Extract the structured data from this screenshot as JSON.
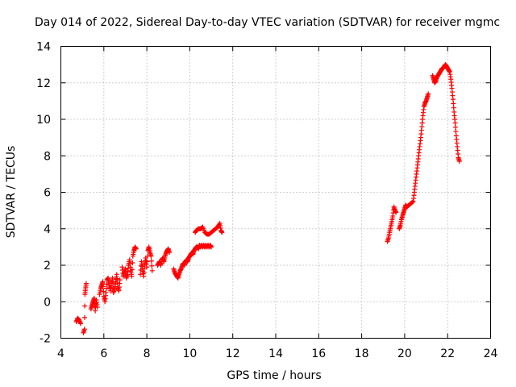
{
  "chart_data": {
    "type": "scatter",
    "title": "Day 014 of 2022, Sidereal Day-to-day VTEC variation (SDTVAR) for receiver mgmc",
    "xlabel": "GPS time / hours",
    "ylabel": "SDTVAR / TECUs",
    "xlim": [
      4,
      24
    ],
    "ylim": [
      -2,
      14
    ],
    "x_ticks": [
      "4",
      "6",
      "8",
      "10",
      "12",
      "14",
      "16",
      "18",
      "20",
      "22",
      "24"
    ],
    "y_ticks": [
      "-2",
      "0",
      "2",
      "4",
      "6",
      "8",
      "10",
      "12",
      "14"
    ],
    "grid": true,
    "marker": "+",
    "color": "#ff0000",
    "series": [
      {
        "name": "SDTVAR",
        "segments": [
          [
            [
              4.72,
              -1.1
            ],
            [
              4.78,
              -0.9
            ],
            [
              4.85,
              -1.0
            ],
            [
              4.92,
              -1.2
            ]
          ],
          [
            [
              5.05,
              -1.7
            ],
            [
              5.1,
              -1.5
            ],
            [
              5.12,
              0.4
            ],
            [
              5.15,
              0.7
            ],
            [
              5.18,
              1.0
            ]
          ],
          [
            [
              5.4,
              -0.4
            ],
            [
              5.45,
              -0.2
            ],
            [
              5.5,
              0.0
            ],
            [
              5.55,
              0.2
            ],
            [
              5.6,
              -0.5
            ],
            [
              5.65,
              0.1
            ],
            [
              5.7,
              -0.3
            ]
          ],
          [
            [
              5.8,
              0.4
            ],
            [
              5.85,
              0.7
            ],
            [
              5.9,
              0.9
            ],
            [
              5.95,
              1.1
            ],
            [
              6.0,
              0.3
            ],
            [
              6.05,
              0.0
            ],
            [
              6.1,
              0.5
            ],
            [
              6.15,
              1.2
            ],
            [
              6.2,
              1.3
            ],
            [
              6.25,
              0.9
            ],
            [
              6.3,
              0.6
            ],
            [
              6.35,
              1.0
            ],
            [
              6.4,
              1.3
            ],
            [
              6.45,
              0.5
            ],
            [
              6.5,
              0.7
            ],
            [
              6.55,
              1.1
            ],
            [
              6.6,
              1.5
            ],
            [
              6.65,
              0.8
            ],
            [
              6.7,
              0.6
            ],
            [
              6.75,
              1.2
            ]
          ],
          [
            [
              6.85,
              1.9
            ],
            [
              6.9,
              1.4
            ],
            [
              6.95,
              1.6
            ],
            [
              7.0,
              1.8
            ],
            [
              7.05,
              1.3
            ],
            [
              7.1,
              1.5
            ],
            [
              7.15,
              2.0
            ],
            [
              7.2,
              2.3
            ],
            [
              7.25,
              1.7
            ],
            [
              7.3,
              1.4
            ],
            [
              7.35,
              2.5
            ],
            [
              7.4,
              2.8
            ],
            [
              7.45,
              3.0
            ],
            [
              7.5,
              2.9
            ]
          ],
          [
            [
              7.7,
              1.5
            ],
            [
              7.75,
              2.2
            ],
            [
              7.8,
              1.8
            ],
            [
              7.85,
              1.4
            ],
            [
              7.9,
              2.0
            ],
            [
              7.95,
              2.4
            ],
            [
              8.0,
              1.9
            ],
            [
              8.05,
              2.8
            ],
            [
              8.1,
              3.0
            ],
            [
              8.15,
              2.7
            ],
            [
              8.2,
              2.5
            ],
            [
              8.25,
              1.7
            ]
          ],
          [
            [
              8.5,
              2.0
            ],
            [
              8.55,
              2.1
            ],
            [
              8.6,
              2.2
            ],
            [
              8.65,
              2.0
            ],
            [
              8.7,
              2.3
            ],
            [
              8.75,
              2.4
            ],
            [
              8.8,
              2.2
            ],
            [
              8.85,
              2.5
            ],
            [
              8.9,
              2.7
            ],
            [
              8.95,
              2.8
            ],
            [
              9.0,
              2.9
            ],
            [
              9.05,
              2.7
            ]
          ],
          [
            [
              9.25,
              1.8
            ],
            [
              9.3,
              1.6
            ],
            [
              9.35,
              1.5
            ],
            [
              9.4,
              1.4
            ],
            [
              9.45,
              1.3
            ],
            [
              9.5,
              1.5
            ],
            [
              9.55,
              1.7
            ],
            [
              9.6,
              1.8
            ],
            [
              9.65,
              2.0
            ],
            [
              9.7,
              2.1
            ],
            [
              9.75,
              2.0
            ],
            [
              9.8,
              2.2
            ],
            [
              9.85,
              2.3
            ],
            [
              9.9,
              2.2
            ],
            [
              9.95,
              2.4
            ],
            [
              10.0,
              2.5
            ],
            [
              10.05,
              2.6
            ],
            [
              10.1,
              2.7
            ],
            [
              10.15,
              2.6
            ],
            [
              10.2,
              2.8
            ],
            [
              10.25,
              2.9
            ],
            [
              10.3,
              3.0
            ],
            [
              10.35,
              3.0
            ],
            [
              10.4,
              2.9
            ],
            [
              10.45,
              3.1
            ],
            [
              10.5,
              3.0
            ],
            [
              10.55,
              3.1
            ],
            [
              10.6,
              3.0
            ],
            [
              10.65,
              3.1
            ],
            [
              10.7,
              3.0
            ],
            [
              10.75,
              3.1
            ],
            [
              10.8,
              3.0
            ],
            [
              10.85,
              3.1
            ],
            [
              10.9,
              3.0
            ],
            [
              10.95,
              3.1
            ],
            [
              11.0,
              3.0
            ]
          ],
          [
            [
              10.25,
              3.8
            ],
            [
              10.3,
              3.9
            ],
            [
              10.4,
              4.0
            ],
            [
              10.5,
              4.0
            ],
            [
              10.6,
              4.1
            ],
            [
              10.7,
              3.8
            ],
            [
              10.8,
              3.7
            ],
            [
              10.9,
              3.7
            ],
            [
              11.0,
              3.8
            ],
            [
              11.1,
              3.9
            ],
            [
              11.2,
              4.0
            ],
            [
              11.3,
              4.1
            ],
            [
              11.4,
              4.3
            ],
            [
              11.45,
              3.9
            ],
            [
              11.5,
              3.8
            ]
          ],
          [
            [
              19.2,
              3.3
            ],
            [
              19.25,
              3.5
            ],
            [
              19.3,
              3.8
            ],
            [
              19.35,
              4.1
            ],
            [
              19.4,
              4.4
            ],
            [
              19.45,
              4.7
            ],
            [
              19.5,
              5.2
            ],
            [
              19.55,
              5.0
            ],
            [
              19.6,
              4.9
            ]
          ],
          [
            [
              19.75,
              4.0
            ],
            [
              19.8,
              4.2
            ],
            [
              19.85,
              4.5
            ],
            [
              19.9,
              4.7
            ],
            [
              19.95,
              4.9
            ],
            [
              20.0,
              5.1
            ],
            [
              20.05,
              5.3
            ],
            [
              20.1,
              5.2
            ],
            [
              20.2,
              5.3
            ],
            [
              20.3,
              5.4
            ],
            [
              20.4,
              5.5
            ],
            [
              20.45,
              6.0
            ],
            [
              20.5,
              6.5
            ],
            [
              20.55,
              7.0
            ],
            [
              20.6,
              7.5
            ],
            [
              20.65,
              8.0
            ],
            [
              20.7,
              8.5
            ],
            [
              20.75,
              9.0
            ],
            [
              20.8,
              9.6
            ],
            [
              20.85,
              10.2
            ],
            [
              20.9,
              10.7
            ],
            [
              20.95,
              10.9
            ],
            [
              21.0,
              11.0
            ],
            [
              21.05,
              11.2
            ],
            [
              21.1,
              11.4
            ]
          ],
          [
            [
              21.3,
              12.4
            ],
            [
              21.35,
              12.2
            ],
            [
              21.4,
              12.0
            ],
            [
              21.45,
              12.1
            ],
            [
              21.5,
              12.3
            ],
            [
              21.55,
              12.4
            ],
            [
              21.6,
              12.5
            ],
            [
              21.65,
              12.6
            ],
            [
              21.7,
              12.7
            ],
            [
              21.75,
              12.8
            ],
            [
              21.8,
              12.8
            ],
            [
              21.85,
              12.9
            ],
            [
              21.9,
              13.0
            ],
            [
              21.95,
              12.9
            ],
            [
              22.0,
              12.8
            ],
            [
              22.05,
              12.7
            ],
            [
              22.1,
              12.6
            ],
            [
              22.15,
              12.2
            ],
            [
              22.2,
              11.7
            ],
            [
              22.25,
              11.1
            ],
            [
              22.3,
              10.4
            ],
            [
              22.35,
              9.8
            ],
            [
              22.4,
              9.1
            ],
            [
              22.45,
              8.5
            ],
            [
              22.5,
              7.9
            ],
            [
              22.55,
              7.7
            ]
          ]
        ]
      }
    ]
  }
}
